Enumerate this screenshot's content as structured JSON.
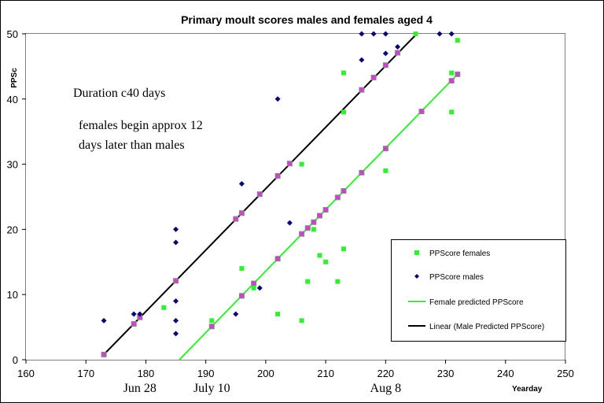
{
  "chart_data": {
    "type": "scatter",
    "title": "Primary moult scores males and females aged 4",
    "ylabel": "PPSc",
    "xlabel": "Yearday",
    "xlim": [
      160,
      250
    ],
    "ylim": [
      0,
      50
    ],
    "xticks": [
      160,
      170,
      180,
      190,
      200,
      210,
      220,
      230,
      240,
      250
    ],
    "yticks": [
      0,
      10,
      20,
      30,
      40,
      50
    ],
    "grid": false,
    "legend_position": "bottom-right",
    "date_labels": [
      {
        "text": "Jun 28",
        "x": 179
      },
      {
        "text": "July 10",
        "x": 191
      },
      {
        "text": "Aug 8",
        "x": 220
      }
    ],
    "annotations": [
      "Duration c40 days",
      "females begin approx 12",
      "days later than males"
    ],
    "colors": {
      "females": "#33ee33",
      "males": "#0a0a6e",
      "female_line": "#33ee33",
      "male_line": "#000000",
      "predicted_marker": "#cc44cc"
    },
    "series": [
      {
        "name": "PPScore females",
        "kind": "points",
        "marker": "square",
        "x": [
          183,
          191,
          196,
          198,
          202,
          206,
          206,
          207,
          208,
          209,
          210,
          212,
          213,
          213,
          213,
          220,
          225,
          231,
          231,
          232
        ],
        "y": [
          8,
          6,
          14,
          11,
          7,
          6,
          30,
          12,
          20,
          16,
          15,
          12,
          17,
          38,
          44,
          29,
          50,
          38,
          44,
          49
        ]
      },
      {
        "name": "PPScore males",
        "kind": "points",
        "marker": "diamond",
        "x": [
          173,
          178,
          179,
          185,
          185,
          185,
          185,
          185,
          195,
          196,
          199,
          202,
          204,
          216,
          216,
          218,
          220,
          220,
          222,
          229,
          231
        ],
        "y": [
          6,
          7,
          7,
          20,
          18,
          9,
          6,
          4,
          7,
          27,
          11,
          40,
          21,
          46,
          50,
          50,
          47,
          50,
          48,
          50,
          50
        ]
      },
      {
        "name": "Female predicted PPScore",
        "kind": "line",
        "x": [
          185.6,
          232
        ],
        "y": [
          0,
          43.8
        ],
        "predicted_points_x": [
          191,
          196,
          198,
          202,
          206,
          207,
          208,
          209,
          210,
          212,
          213,
          216,
          220,
          226,
          231,
          232
        ],
        "predicted_points_y": [
          5.1,
          9.8,
          11.7,
          15.5,
          19.3,
          20.2,
          21.1,
          22.1,
          23,
          24.9,
          25.9,
          28.7,
          32.4,
          38.1,
          42.8,
          43.8
        ]
      },
      {
        "name": "Linear (Male Predicted PPScore)",
        "kind": "line",
        "x": [
          173,
          225.2
        ],
        "y": [
          0.8,
          50
        ],
        "predicted_points_x": [
          173,
          178,
          179,
          185,
          195,
          196,
          199,
          202,
          204,
          216,
          218,
          220,
          222
        ],
        "predicted_points_y": [
          0.8,
          5.5,
          6.5,
          12.1,
          21.6,
          22.5,
          25.4,
          28.2,
          30.1,
          41.4,
          43.3,
          45.2,
          47.1
        ]
      }
    ]
  }
}
